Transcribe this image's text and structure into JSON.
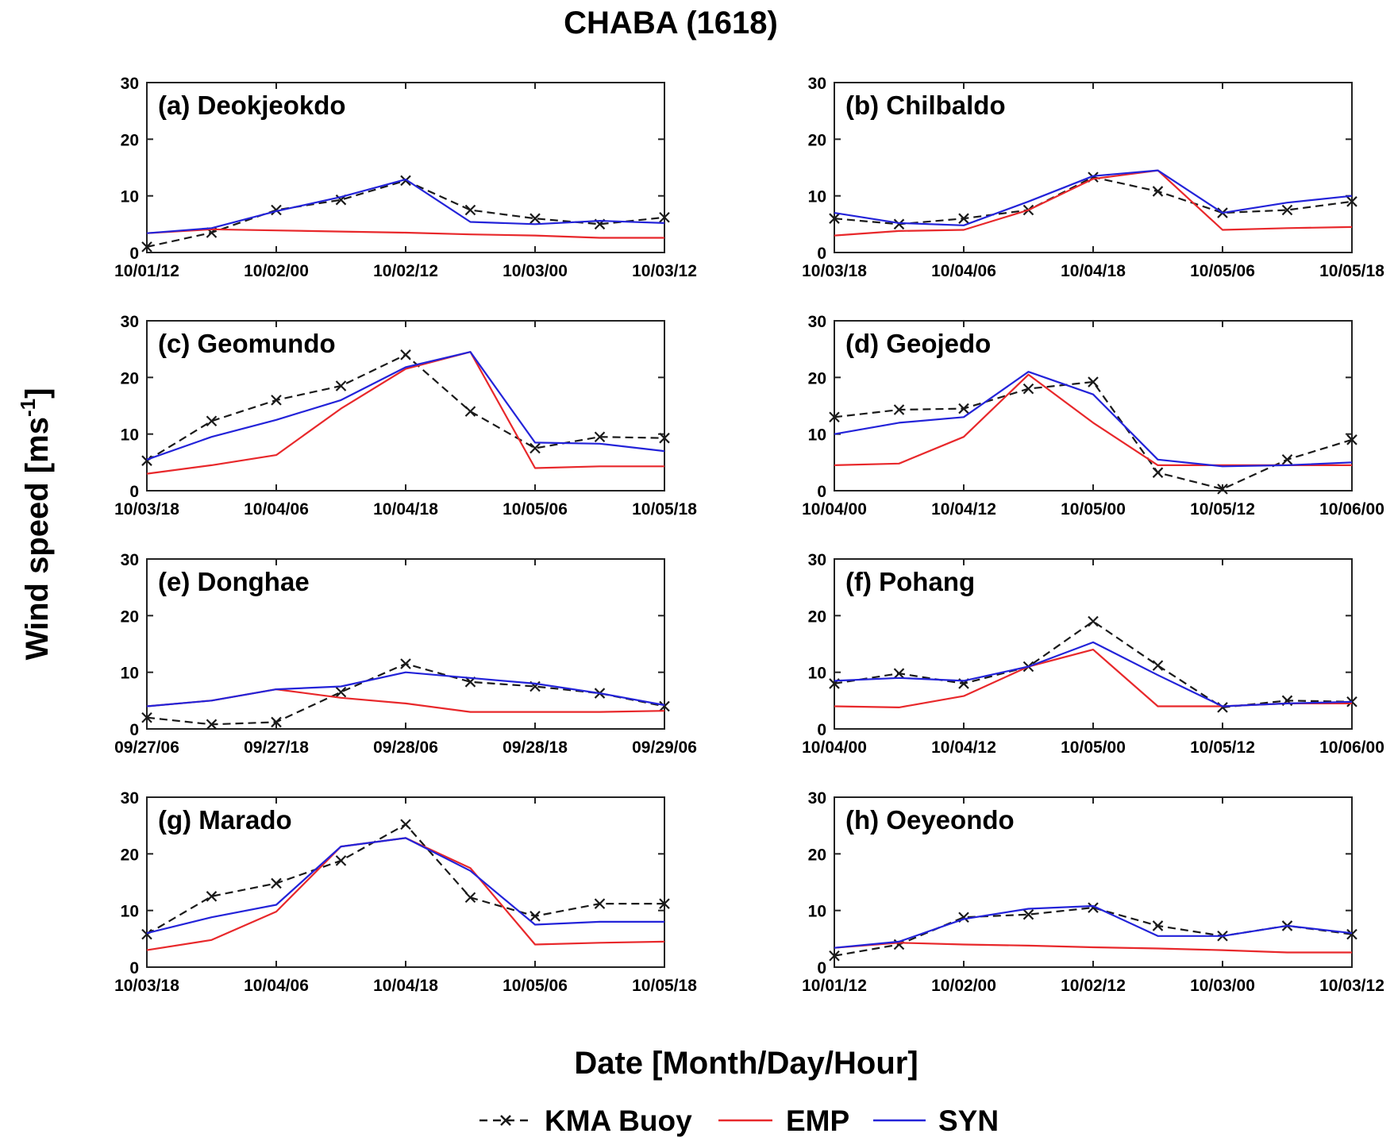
{
  "chart_data": {
    "type": "line",
    "title": "CHABA (1618)",
    "ylabel": "Wind speed [ms",
    "ylabel_superscript": "-1",
    "ylabel_suffix": "]",
    "xlabel": "Date [Month/Day/Hour]",
    "ylim": [
      0,
      30
    ],
    "yticks": [
      0,
      10,
      20,
      30
    ],
    "grid": false,
    "legend_position": "bottom-center",
    "series_styles": [
      {
        "name": "KMA Buoy",
        "color": "#1a1a1a",
        "dashed": true,
        "marker": "x"
      },
      {
        "name": "EMP",
        "color": "#e8282b",
        "dashed": false,
        "marker": "none"
      },
      {
        "name": "SYN",
        "color": "#2323d9",
        "dashed": false,
        "marker": "none"
      }
    ],
    "panels": [
      {
        "title": "(a) Deokjeokdo",
        "xticks": [
          "10/01/12",
          "10/02/00",
          "10/02/12",
          "10/03/00",
          "10/03/12"
        ],
        "series": [
          {
            "name": "KMA Buoy",
            "values": [
              1.0,
              3.5,
              7.5,
              9.3,
              12.7,
              7.5,
              6.0,
              5.0,
              6.2
            ]
          },
          {
            "name": "EMP",
            "values": [
              3.4,
              4.1,
              3.9,
              3.7,
              3.5,
              3.2,
              3.0,
              2.6,
              2.6
            ]
          },
          {
            "name": "SYN",
            "values": [
              3.4,
              4.3,
              7.3,
              9.8,
              12.9,
              5.4,
              5.0,
              5.6,
              5.2
            ]
          }
        ]
      },
      {
        "title": "(b) Chilbaldo",
        "xticks": [
          "10/03/18",
          "10/04/06",
          "10/04/18",
          "10/05/06",
          "10/05/18"
        ],
        "series": [
          {
            "name": "KMA Buoy",
            "values": [
              6.0,
              5.0,
              6.0,
              7.5,
              13.3,
              10.8,
              7.0,
              7.5,
              9.0
            ]
          },
          {
            "name": "EMP",
            "values": [
              3.0,
              3.8,
              4.0,
              7.5,
              13.0,
              14.5,
              4.0,
              4.3,
              4.5
            ]
          },
          {
            "name": "SYN",
            "values": [
              7.0,
              5.2,
              4.8,
              9.0,
              13.5,
              14.5,
              7.0,
              8.8,
              10.0
            ]
          }
        ]
      },
      {
        "title": "(c) Geomundo",
        "xticks": [
          "10/03/18",
          "10/04/06",
          "10/04/18",
          "10/05/06",
          "10/05/18"
        ],
        "series": [
          {
            "name": "KMA Buoy",
            "values": [
              5.3,
              12.3,
              16.0,
              18.5,
              24.0,
              14.0,
              7.5,
              9.5,
              9.3
            ]
          },
          {
            "name": "EMP",
            "values": [
              3.0,
              4.5,
              6.3,
              14.5,
              21.5,
              24.5,
              4.0,
              4.3,
              4.3
            ]
          },
          {
            "name": "SYN",
            "values": [
              5.5,
              9.5,
              12.5,
              16.0,
              21.8,
              24.5,
              8.5,
              8.3,
              7.0
            ]
          }
        ]
      },
      {
        "title": "(d) Geojedo",
        "xticks": [
          "10/04/00",
          "10/04/12",
          "10/05/00",
          "10/05/12",
          "10/06/00"
        ],
        "series": [
          {
            "name": "KMA Buoy",
            "values": [
              13.0,
              14.3,
              14.5,
              18.0,
              19.2,
              3.2,
              0.3,
              5.5,
              9.0
            ]
          },
          {
            "name": "EMP",
            "values": [
              4.5,
              4.8,
              9.5,
              20.5,
              12.0,
              4.5,
              4.5,
              4.5,
              4.5
            ]
          },
          {
            "name": "SYN",
            "values": [
              10.0,
              12.0,
              13.0,
              21.0,
              17.0,
              5.5,
              4.3,
              4.5,
              5.0
            ]
          }
        ]
      },
      {
        "title": "(e) Donghae",
        "xticks": [
          "09/27/06",
          "09/27/18",
          "09/28/06",
          "09/28/18",
          "09/29/06"
        ],
        "series": [
          {
            "name": "KMA Buoy",
            "values": [
              2.0,
              0.8,
              1.2,
              6.5,
              11.5,
              8.3,
              7.5,
              6.3,
              4.0
            ]
          },
          {
            "name": "EMP",
            "values": [
              4.0,
              5.0,
              7.0,
              5.5,
              4.5,
              3.0,
              3.0,
              3.0,
              3.2
            ]
          },
          {
            "name": "SYN",
            "values": [
              4.0,
              5.0,
              7.0,
              7.5,
              10.0,
              9.0,
              8.0,
              6.3,
              4.2
            ]
          }
        ]
      },
      {
        "title": "(f) Pohang",
        "xticks": [
          "10/04/00",
          "10/04/12",
          "10/05/00",
          "10/05/12",
          "10/06/00"
        ],
        "series": [
          {
            "name": "KMA Buoy",
            "values": [
              8.0,
              9.8,
              8.0,
              11.0,
              19.0,
              11.2,
              3.8,
              5.0,
              4.8
            ]
          },
          {
            "name": "EMP",
            "values": [
              4.0,
              3.8,
              5.8,
              11.0,
              14.0,
              4.0,
              4.0,
              4.5,
              4.5
            ]
          },
          {
            "name": "SYN",
            "values": [
              8.5,
              9.0,
              8.5,
              11.0,
              15.3,
              9.5,
              4.0,
              4.5,
              4.8
            ]
          }
        ]
      },
      {
        "title": "(g) Marado",
        "xticks": [
          "10/03/18",
          "10/04/06",
          "10/04/18",
          "10/05/06",
          "10/05/18"
        ],
        "series": [
          {
            "name": "KMA Buoy",
            "values": [
              5.8,
              12.5,
              14.8,
              18.8,
              25.2,
              12.3,
              9.0,
              11.2,
              11.2
            ]
          },
          {
            "name": "EMP",
            "values": [
              3.0,
              4.8,
              9.8,
              21.3,
              22.8,
              17.5,
              4.0,
              4.3,
              4.5
            ]
          },
          {
            "name": "SYN",
            "values": [
              6.0,
              8.8,
              11.0,
              21.3,
              22.8,
              17.0,
              7.5,
              8.0,
              8.0
            ]
          }
        ]
      },
      {
        "title": "(h) Oeyeondo",
        "xticks": [
          "10/01/12",
          "10/02/00",
          "10/02/12",
          "10/03/00",
          "10/03/12"
        ],
        "series": [
          {
            "name": "KMA Buoy",
            "values": [
              2.0,
              4.0,
              8.8,
              9.3,
              10.5,
              7.3,
              5.5,
              7.3,
              5.8
            ]
          },
          {
            "name": "EMP",
            "values": [
              3.4,
              4.3,
              4.0,
              3.8,
              3.5,
              3.3,
              3.0,
              2.6,
              2.6
            ]
          },
          {
            "name": "SYN",
            "values": [
              3.4,
              4.5,
              8.5,
              10.3,
              10.8,
              5.5,
              5.5,
              7.3,
              6.0
            ]
          }
        ]
      }
    ]
  }
}
